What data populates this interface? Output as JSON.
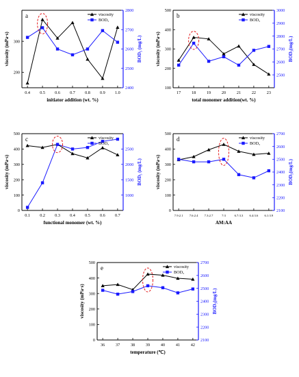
{
  "figure": {
    "left_axis_color": "#000000",
    "right_axis_color": "#1a1aff",
    "highlight_color": "#e31a1c",
    "series_colors": [
      "#000000",
      "#1a1aff"
    ]
  },
  "chart_data": [
    {
      "type": "line",
      "panel_letter": "a",
      "xlabel": "initiator addition (wt. %)",
      "ylabel": "viscosity (mPa·s)",
      "y2label": "BOD₅ (mg/L)",
      "x": [
        0.4,
        0.5,
        0.6,
        0.7,
        0.8,
        0.9,
        1.0
      ],
      "x_ticks": [
        "0.4",
        "0.5",
        "0.6",
        "0.7",
        "0.8",
        "0.9",
        "1.0"
      ],
      "ylim": [
        150,
        400
      ],
      "y_ticks": [
        200,
        300
      ],
      "y2lim": [
        2400,
        2800
      ],
      "y2_ticks": [
        2400,
        2500,
        2600,
        2700,
        2800
      ],
      "legend_position": "top-right",
      "highlight_x": 0.5,
      "series": [
        {
          "name": "viscosity",
          "axis": "left",
          "marker": "triangle",
          "values": [
            165,
            370,
            310,
            360,
            242,
            180,
            345
          ]
        },
        {
          "name": "BOD₅",
          "axis": "right",
          "marker": "square",
          "values": [
            2660,
            2710,
            2600,
            2570,
            2600,
            2695,
            2635
          ]
        }
      ]
    },
    {
      "type": "line",
      "panel_letter": "b",
      "xlabel": "total monomer addition(wt. %)",
      "ylabel": "viscosity (mPa·s)",
      "y2label": "BOD₅(mg/L)",
      "x": [
        17,
        18,
        19,
        20,
        21,
        22,
        23
      ],
      "x_ticks": [
        "17",
        "18",
        "19",
        "20",
        "21",
        "22",
        "23"
      ],
      "ylim": [
        100,
        500
      ],
      "y_ticks": [
        100,
        200,
        300,
        400,
        500
      ],
      "y2lim": [
        2400,
        3000
      ],
      "y2_ticks": [
        2500,
        2600,
        2700,
        2800,
        2900,
        3000
      ],
      "legend_position": "top-right",
      "highlight_x": 18,
      "series": [
        {
          "name": "viscosity",
          "axis": "left",
          "marker": "triangle",
          "values": [
            242,
            360,
            352,
            275,
            315,
            220,
            170
          ]
        },
        {
          "name": "BOD₅",
          "axis": "right",
          "marker": "square",
          "values": [
            2575,
            2745,
            2605,
            2640,
            2575,
            2690,
            2720
          ]
        }
      ]
    },
    {
      "type": "line",
      "panel_letter": "c",
      "xlabel": "functional monomer (wt. %)",
      "ylabel": "viscosity (mPa·s)",
      "y2label": "BOD₅ (mg/L)",
      "x": [
        0.1,
        0.2,
        0.3,
        0.4,
        0.5,
        0.6,
        0.7
      ],
      "x_ticks": [
        "0.1",
        "0.2",
        "0.3",
        "0.4",
        "0.5",
        "0.6",
        "0.7"
      ],
      "ylim": [
        0,
        500
      ],
      "y_ticks": [
        0,
        100,
        200,
        300,
        400,
        500
      ],
      "y2lim": [
        500,
        3000
      ],
      "y2_ticks": [
        1000,
        1500,
        2000,
        2500
      ],
      "legend_position": "top-right",
      "highlight_x": 0.3,
      "series": [
        {
          "name": "viscosity",
          "axis": "left",
          "marker": "triangle",
          "values": [
            422,
            410,
            430,
            370,
            342,
            408,
            362
          ]
        },
        {
          "name": "BOD₅",
          "axis": "right",
          "marker": "square",
          "values": [
            600,
            1400,
            2650,
            2500,
            2550,
            2750,
            2820
          ]
        }
      ]
    },
    {
      "type": "line",
      "panel_letter": "d",
      "xlabel": "AM:AA",
      "ylabel": "viscosity (mPa·s)",
      "y2label": "BOD₅(mg/L)",
      "x": [
        "7.9:2.1",
        "7.6:2.4",
        "7.3:2.7",
        "7:3",
        "6.7:3.3",
        "6.4:3.6",
        "6.1:3.9"
      ],
      "x_ticks": [
        "7.9:2.1",
        "7.6:2.4",
        "7.3:2.7",
        "7:3",
        "6.7:3.3",
        "6.4:3.6",
        "6.1:3.9"
      ],
      "ylim": [
        0,
        500
      ],
      "y_ticks": [
        0,
        100,
        200,
        300,
        400,
        500
      ],
      "y2lim": [
        2100,
        2700
      ],
      "y2_ticks": [
        2100,
        2200,
        2300,
        2400,
        2500,
        2600,
        2700
      ],
      "legend_position": "top-right",
      "highlight_x": "7:3",
      "series": [
        {
          "name": "viscosity",
          "axis": "left",
          "marker": "triangle",
          "values": [
            330,
            350,
            395,
            430,
            385,
            365,
            372
          ]
        },
        {
          "name": "BOD₅",
          "axis": "right",
          "marker": "square",
          "values": [
            2500,
            2480,
            2480,
            2500,
            2380,
            2355,
            2410
          ]
        }
      ]
    },
    {
      "type": "line",
      "panel_letter": "e",
      "xlabel": "temperature (℃)",
      "ylabel": "viscosity (mPa·s)",
      "y2label": "BOD₅(mg/L)",
      "x": [
        36,
        37,
        38,
        39,
        40,
        41,
        42
      ],
      "x_ticks": [
        "36",
        "37",
        "38",
        "39",
        "40",
        "41",
        "42"
      ],
      "ylim": [
        0,
        500
      ],
      "y_ticks": [
        0,
        100,
        200,
        300,
        400,
        500
      ],
      "y2lim": [
        2100,
        2700
      ],
      "y2_ticks": [
        2100,
        2200,
        2300,
        2400,
        2500,
        2600,
        2700
      ],
      "legend_position": "top-right",
      "highlight_x": 39,
      "series": [
        {
          "name": "viscosity",
          "axis": "left",
          "marker": "triangle",
          "values": [
            350,
            358,
            325,
            425,
            418,
            398,
            392
          ]
        },
        {
          "name": "BOD₅",
          "axis": "right",
          "marker": "square",
          "values": [
            2485,
            2455,
            2475,
            2520,
            2505,
            2465,
            2495
          ]
        }
      ]
    }
  ]
}
